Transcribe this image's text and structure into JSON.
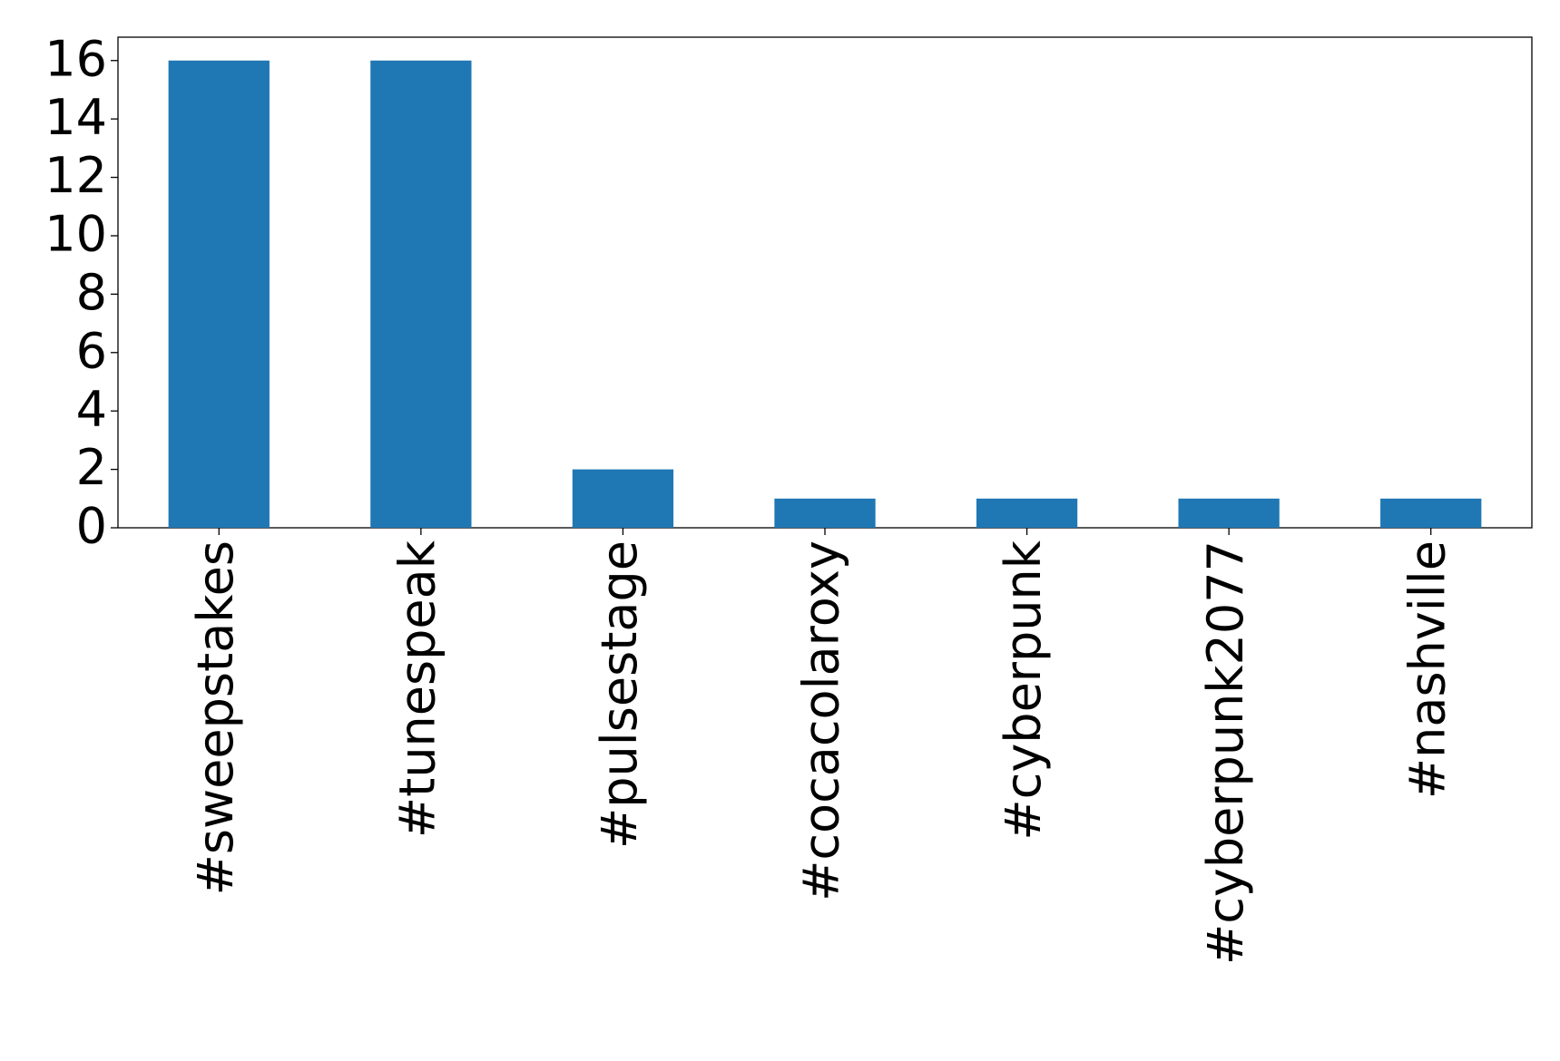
{
  "chart_data": {
    "type": "bar",
    "categories": [
      "#sweepstakes",
      "#tunespeak",
      "#pulsestage",
      "#cocacolaroxy",
      "#cyberpunk",
      "#cyberpunk2077",
      "#nashville"
    ],
    "values": [
      16,
      16,
      2,
      1,
      1,
      1,
      1
    ],
    "color": "#1f77b4",
    "ylim": [
      0,
      16.8
    ],
    "yticks": [
      0,
      2,
      4,
      6,
      8,
      10,
      12,
      14,
      16
    ],
    "grid": false
  }
}
